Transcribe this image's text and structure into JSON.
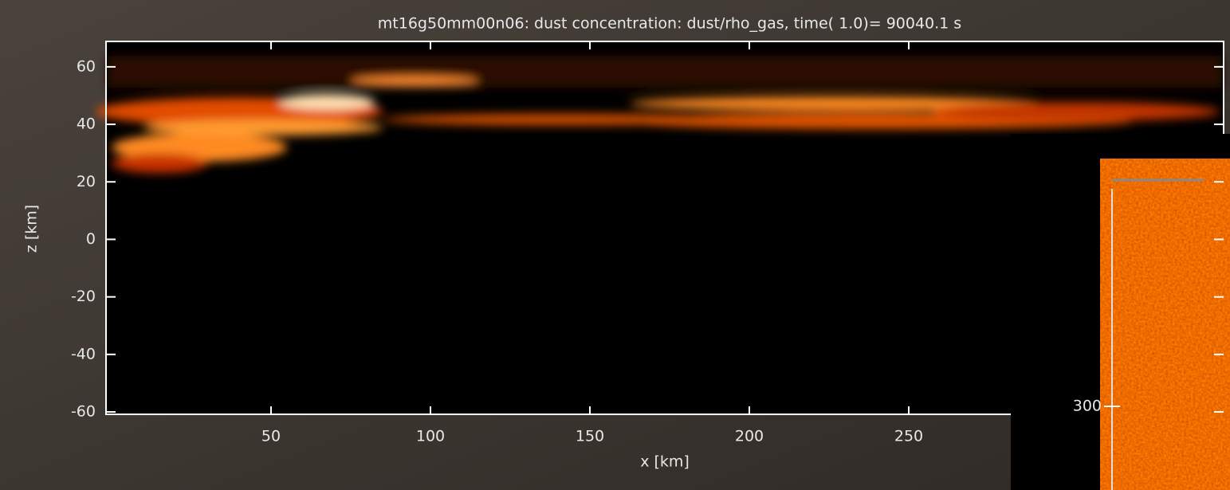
{
  "chart_data": [
    {
      "type": "heatmap",
      "title": "mt16g50mm00n06: dust concentration: dust/rho_gas, time(    1.0)= 90040.1 s",
      "x_label": "x [km]",
      "y_label": "z [km]",
      "xlim": [
        0,
        350
      ],
      "xticks": [
        50,
        100,
        150,
        200,
        250
      ],
      "ylim": [
        -60,
        68
      ],
      "yticks": [
        -60,
        -40,
        -20,
        0,
        20,
        40,
        60
      ]
    },
    {
      "type": "heatmap-inset",
      "yticks": [
        300
      ]
    }
  ]
}
